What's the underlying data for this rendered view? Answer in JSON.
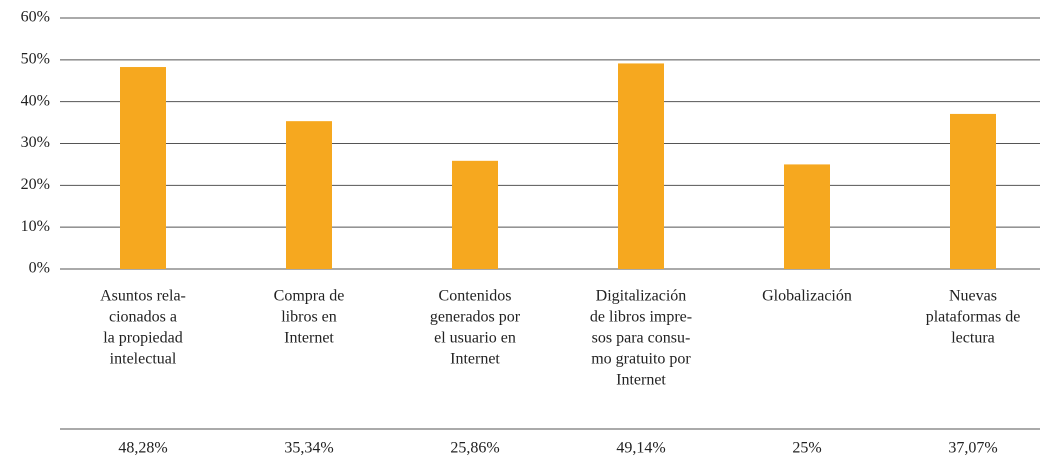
{
  "chart_data": {
    "type": "bar",
    "categories": [
      [
        "Asuntos rela-",
        "cionados a",
        "la propiedad",
        "intelectual"
      ],
      [
        "Compra de",
        "libros en",
        "Internet"
      ],
      [
        "Contenidos",
        "generados por",
        "el usuario en",
        "Internet"
      ],
      [
        "Digitalización",
        "de libros impre-",
        "sos para consu-",
        "mo gratuito por",
        "Internet"
      ],
      [
        "Globalización"
      ],
      [
        "Nuevas",
        "plataformas de",
        "lectura"
      ]
    ],
    "values": [
      48.28,
      35.34,
      25.86,
      49.14,
      25,
      37.07
    ],
    "value_labels": [
      "48,28%",
      "35,34%",
      "25,86%",
      "49,14%",
      "25%",
      "37,07%"
    ],
    "color": "#f6a81f",
    "ylim": [
      0,
      60
    ],
    "yticks": [
      {
        "value": 0,
        "label": "0%"
      },
      {
        "value": 10,
        "label": "10%"
      },
      {
        "value": 20,
        "label": "20%"
      },
      {
        "value": 30,
        "label": "30%"
      },
      {
        "value": 40,
        "label": "40%"
      },
      {
        "value": 50,
        "label": "50%"
      },
      {
        "value": 60,
        "label": "60%"
      }
    ],
    "grid": true
  }
}
